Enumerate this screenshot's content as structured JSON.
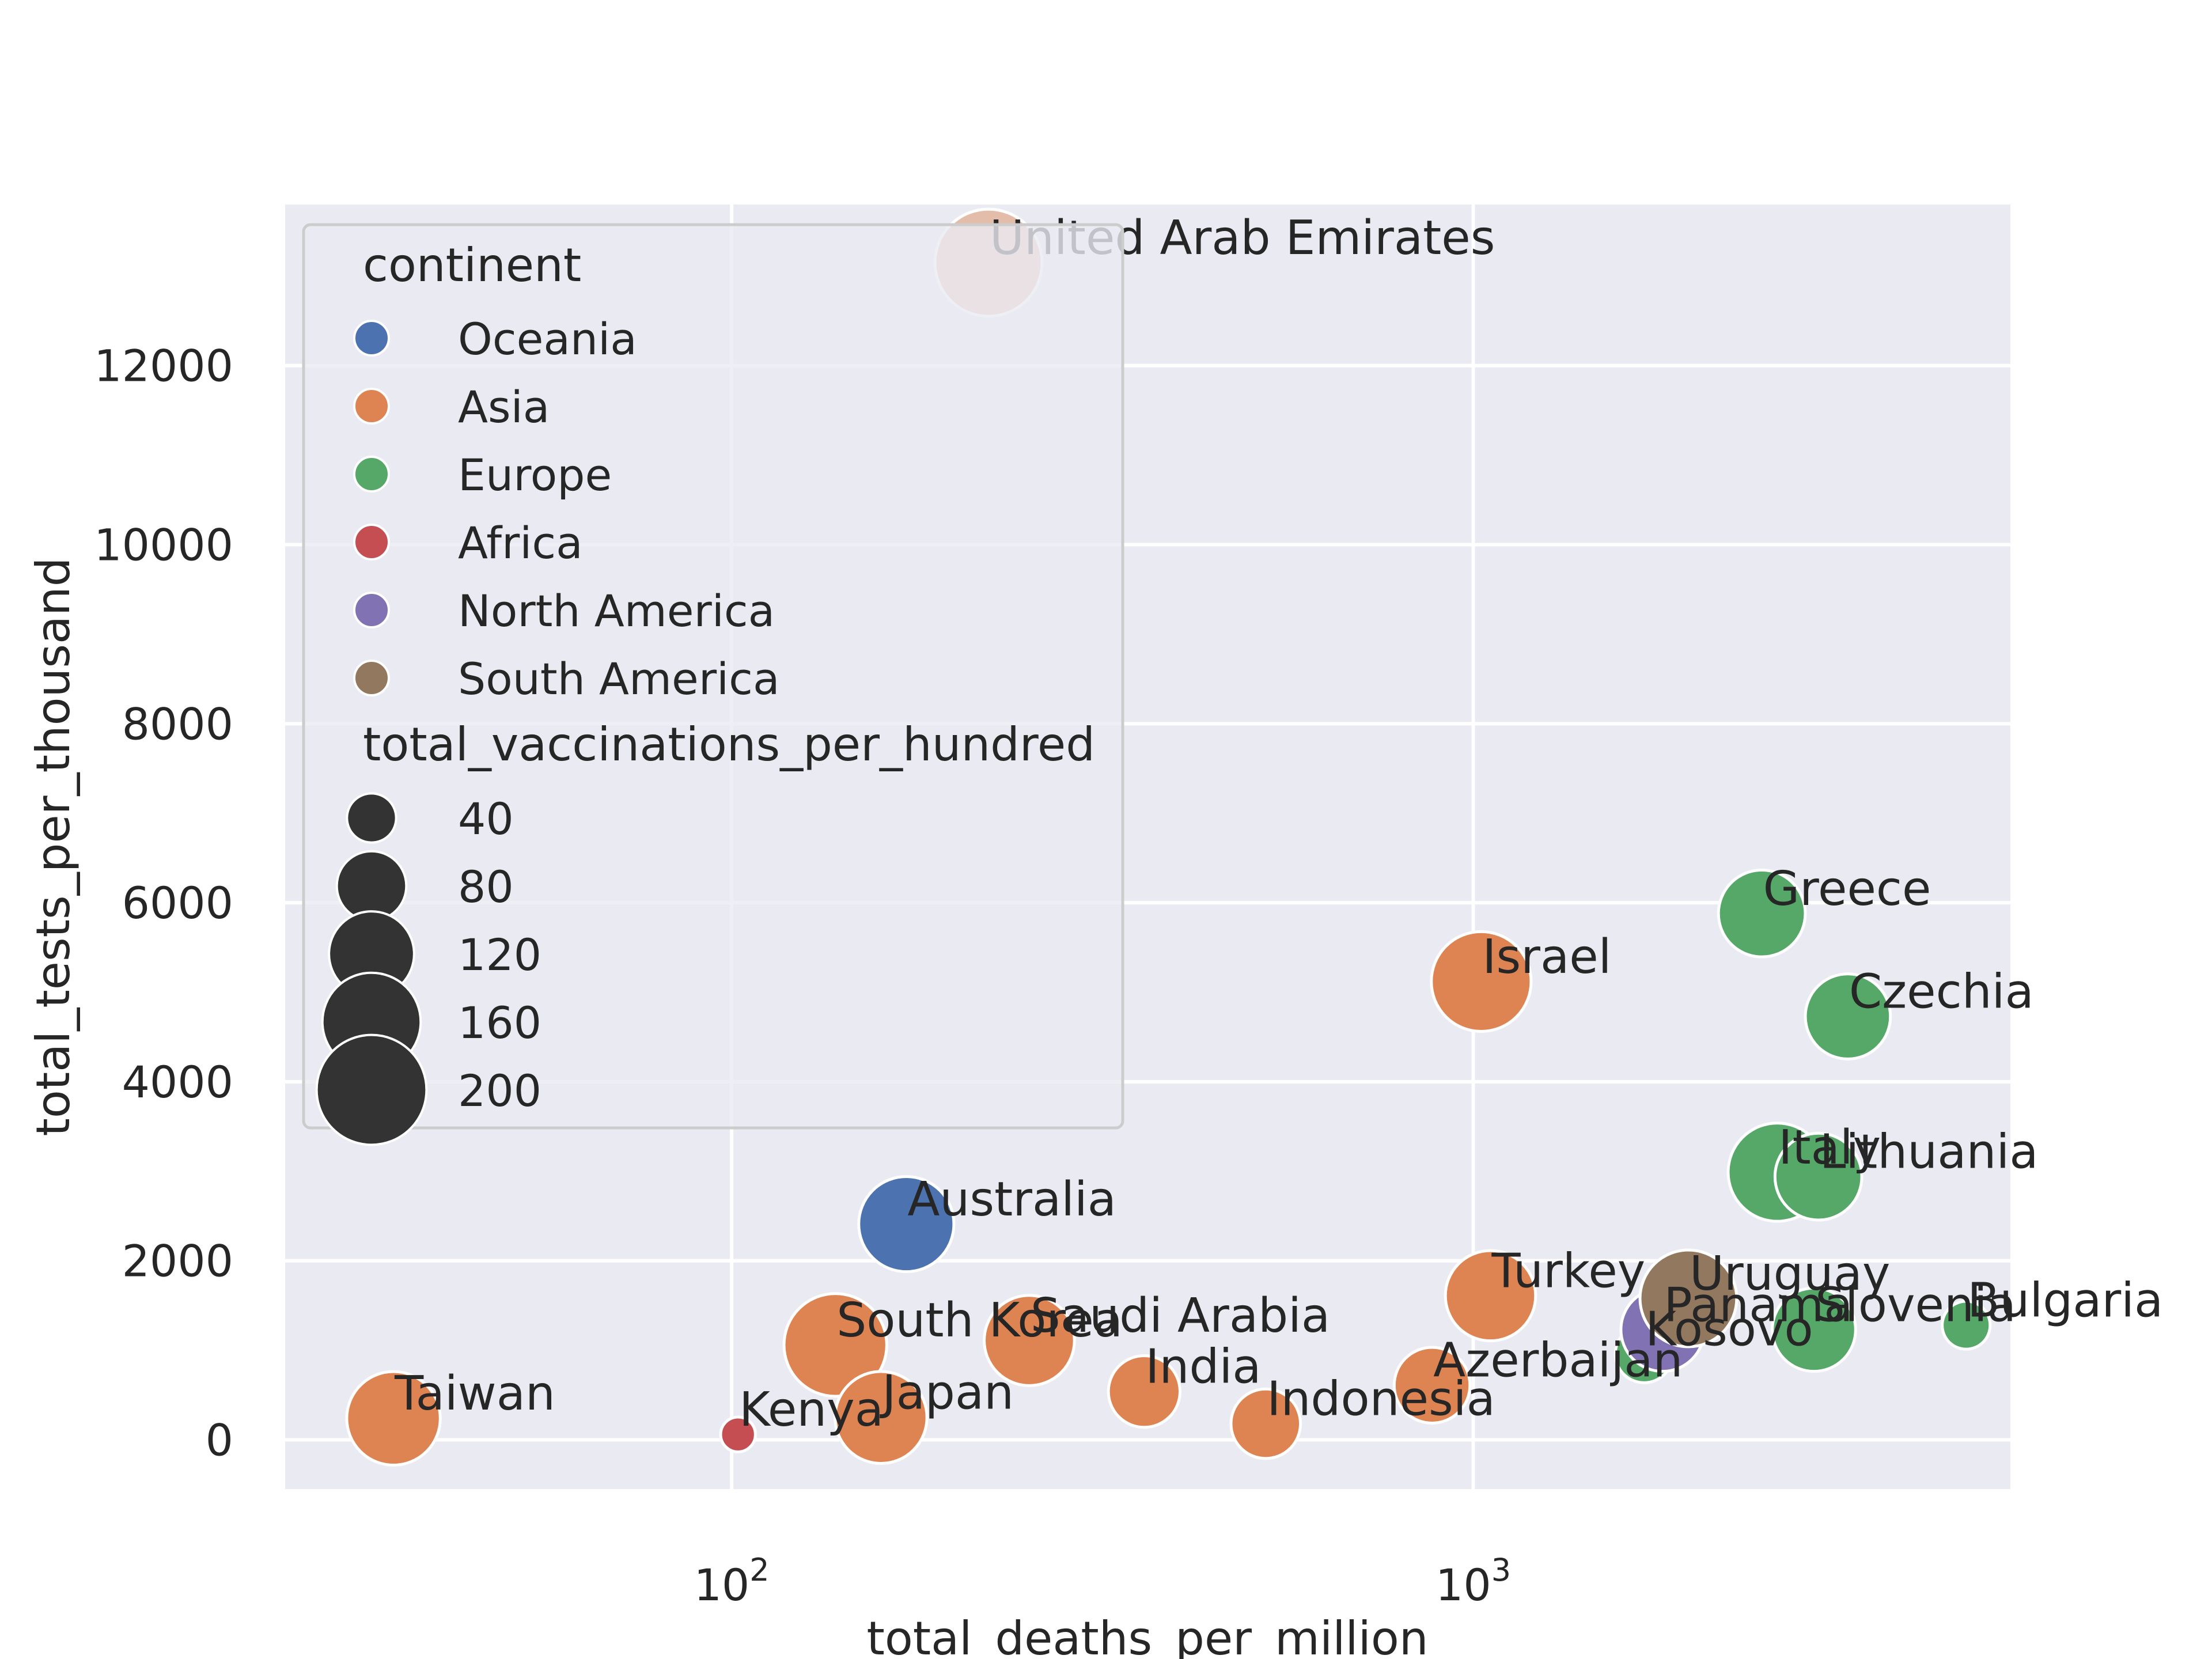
{
  "chart_data": {
    "type": "scatter",
    "title": "",
    "xlabel": "total_deaths_per_million",
    "ylabel": "total_tests_per_thousand",
    "x_scale": "log",
    "xlim": [
      25,
      5300
    ],
    "ylim": [
      -550,
      13800
    ],
    "grid": true,
    "x_ticks": [
      {
        "value": 100,
        "base": "10",
        "exp": "2"
      },
      {
        "value": 1000,
        "base": "10",
        "exp": "3"
      }
    ],
    "y_ticks": [
      {
        "value": 0,
        "label": "0"
      },
      {
        "value": 2000,
        "label": "2000"
      },
      {
        "value": 4000,
        "label": "4000"
      },
      {
        "value": 6000,
        "label": "6000"
      },
      {
        "value": 8000,
        "label": "8000"
      },
      {
        "value": 10000,
        "label": "10000"
      },
      {
        "value": 12000,
        "label": "12000"
      }
    ],
    "legend": {
      "placement": "upper-left",
      "hue_title": "continent",
      "size_title": "total_vaccinations_per_hundred",
      "size_entries": [
        {
          "label": "40",
          "value": 40
        },
        {
          "label": "80",
          "value": 80
        },
        {
          "label": "120",
          "value": 120
        },
        {
          "label": "160",
          "value": 160
        },
        {
          "label": "200",
          "value": 200
        }
      ]
    },
    "continents": [
      {
        "name": "Oceania",
        "color": "#4c72b0"
      },
      {
        "name": "Asia",
        "color": "#dd8452"
      },
      {
        "name": "Europe",
        "color": "#55a868"
      },
      {
        "name": "Africa",
        "color": "#c44e52"
      },
      {
        "name": "North America",
        "color": "#8172b3"
      },
      {
        "name": "South America",
        "color": "#937860"
      }
    ],
    "points": [
      {
        "country": "United Arab Emirates",
        "continent": "Asia",
        "x": 222,
        "y": 13150,
        "size": 190
      },
      {
        "country": "Australia",
        "continent": "Oceania",
        "x": 172,
        "y": 2410,
        "size": 150
      },
      {
        "country": "Taiwan",
        "continent": "Asia",
        "x": 35,
        "y": 240,
        "size": 145
      },
      {
        "country": "Kenya",
        "continent": "Africa",
        "x": 102,
        "y": 60,
        "size": 20
      },
      {
        "country": "South Korea",
        "continent": "Asia",
        "x": 138,
        "y": 1060,
        "size": 175
      },
      {
        "country": "Japan",
        "continent": "Asia",
        "x": 159,
        "y": 250,
        "size": 140
      },
      {
        "country": "Saudi Arabia",
        "continent": "Asia",
        "x": 252,
        "y": 1110,
        "size": 135
      },
      {
        "country": "India",
        "continent": "Asia",
        "x": 360,
        "y": 540,
        "size": 85
      },
      {
        "country": "Indonesia",
        "continent": "Asia",
        "x": 525,
        "y": 180,
        "size": 80
      },
      {
        "country": "Azerbaijan",
        "continent": "Asia",
        "x": 880,
        "y": 610,
        "size": 95
      },
      {
        "country": "Israel",
        "continent": "Asia",
        "x": 1025,
        "y": 5120,
        "size": 165
      },
      {
        "country": "Turkey",
        "continent": "Asia",
        "x": 1055,
        "y": 1610,
        "size": 135
      },
      {
        "country": "Kosovo",
        "continent": "Europe",
        "x": 1700,
        "y": 960,
        "size": 55
      },
      {
        "country": "Panama",
        "continent": "North America",
        "x": 1800,
        "y": 1230,
        "size": 115
      },
      {
        "country": "Uruguay",
        "continent": "South America",
        "x": 1950,
        "y": 1580,
        "size": 155
      },
      {
        "country": "Greece",
        "continent": "Europe",
        "x": 2450,
        "y": 5880,
        "size": 125
      },
      {
        "country": "Italy",
        "continent": "Europe",
        "x": 2570,
        "y": 2990,
        "size": 160
      },
      {
        "country": "Lithuania",
        "continent": "Europe",
        "x": 2920,
        "y": 2940,
        "size": 125
      },
      {
        "country": "Slovenia",
        "continent": "Europe",
        "x": 2880,
        "y": 1230,
        "size": 115
      },
      {
        "country": "Czechia",
        "continent": "Europe",
        "x": 3200,
        "y": 4730,
        "size": 120
      },
      {
        "country": "Bulgaria",
        "continent": "Europe",
        "x": 4620,
        "y": 1280,
        "size": 38
      }
    ]
  }
}
